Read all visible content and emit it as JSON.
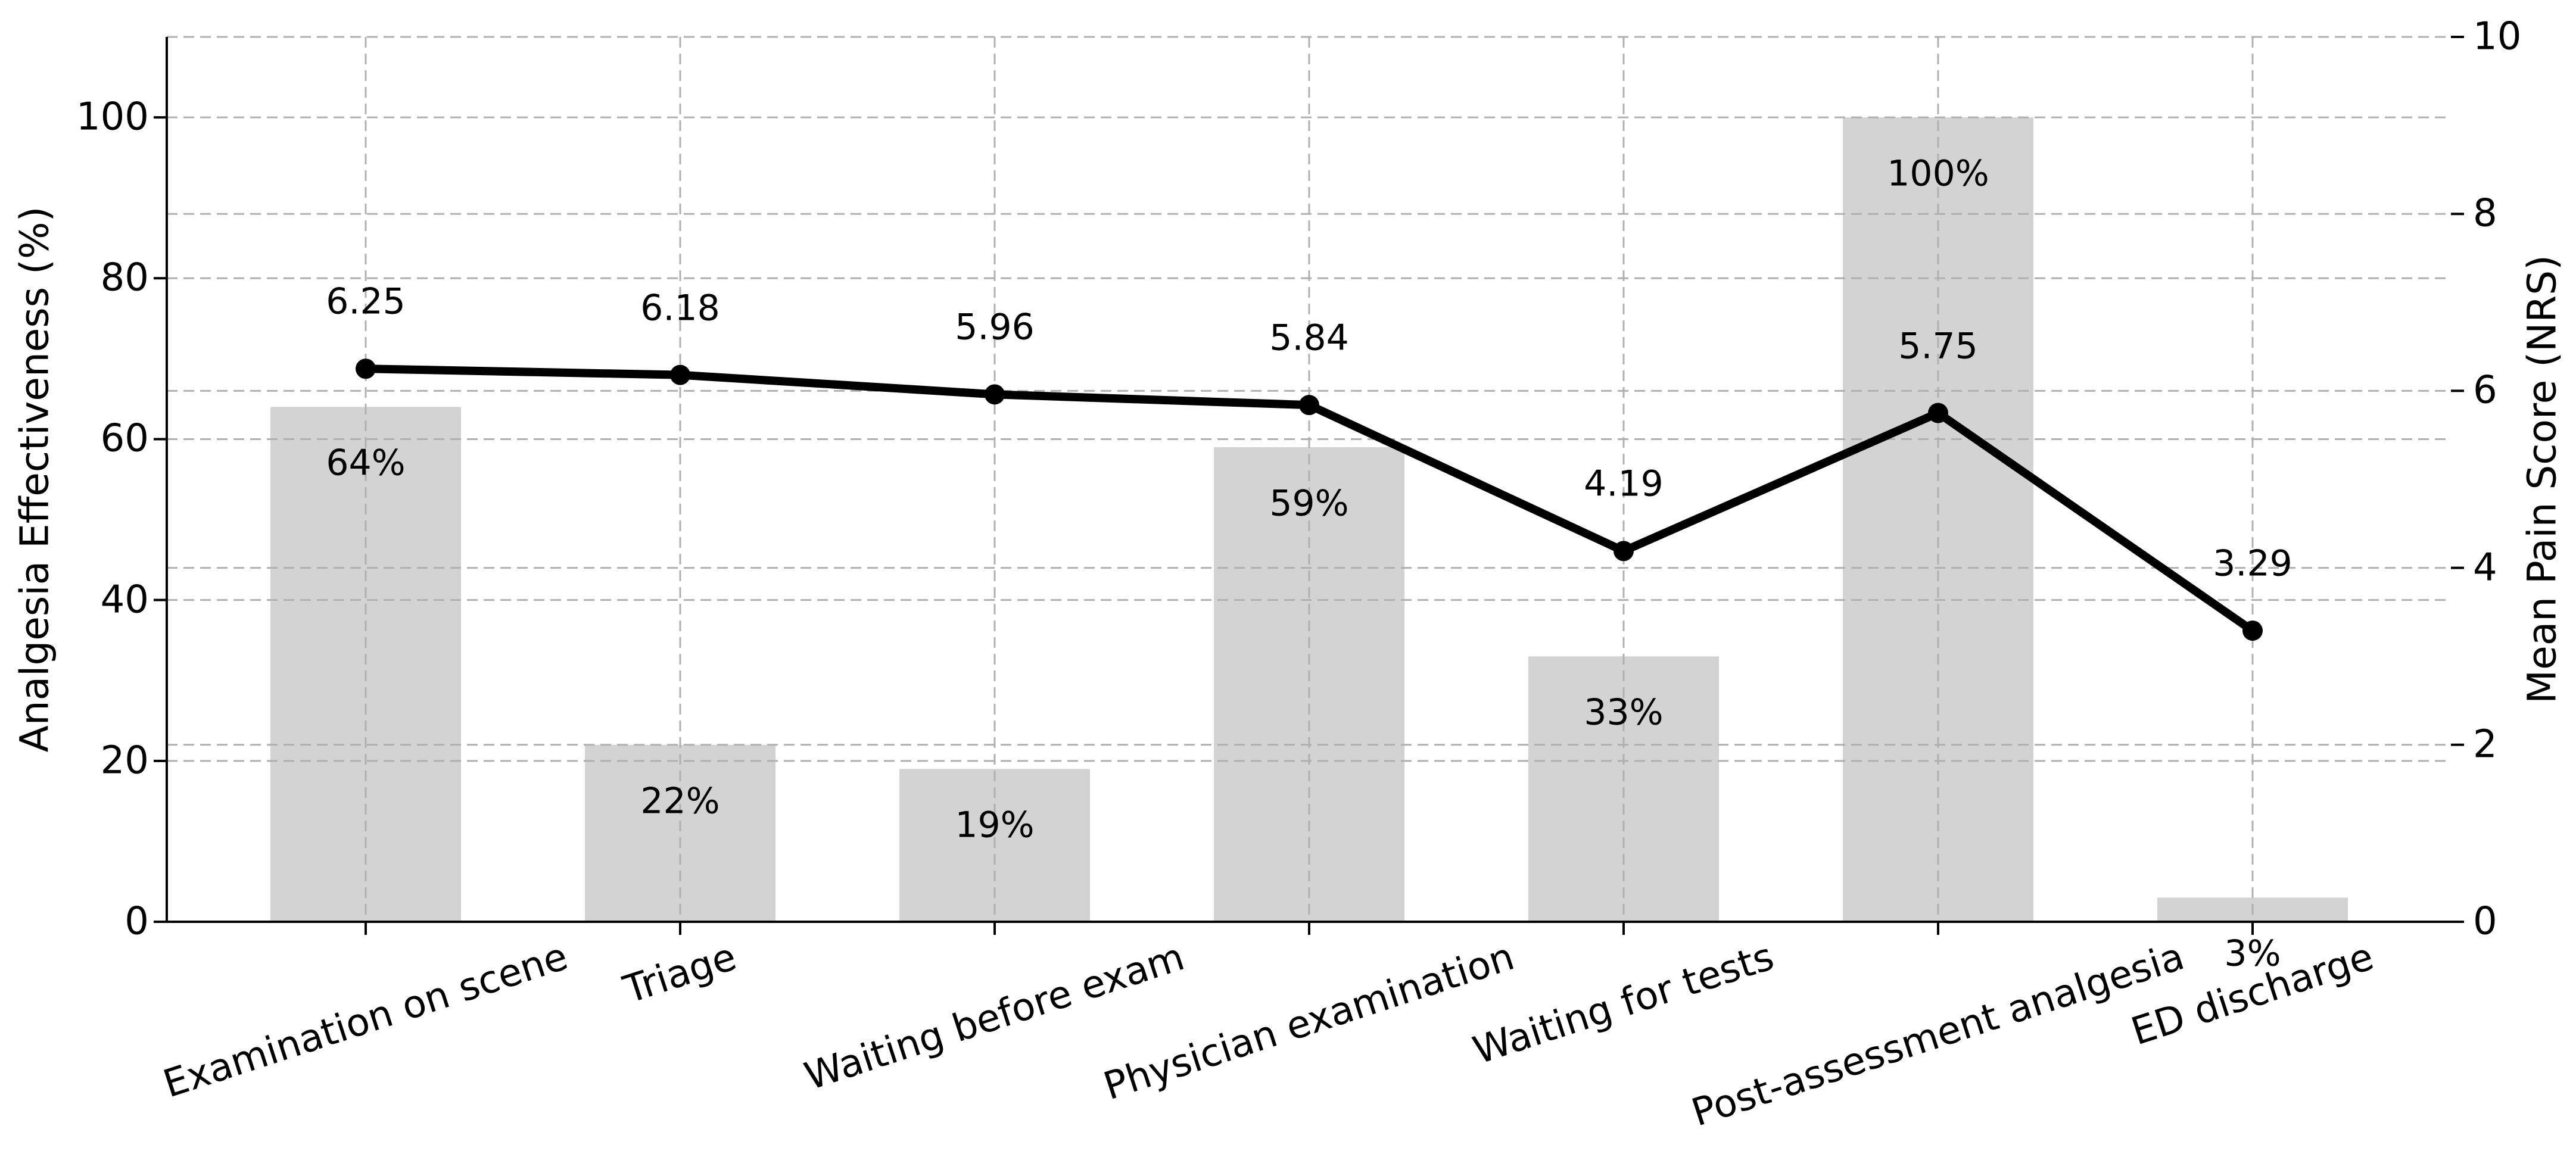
{
  "chart_data": {
    "type": "bar+line",
    "categories": [
      "Examination on scene",
      "Triage",
      "Waiting before exam",
      "Physician examination",
      "Waiting for tests",
      "Post-assessment analgesia",
      "ED discharge"
    ],
    "left_axis": {
      "label": "Analgesia Effectiveness (%)",
      "ticks": [
        0,
        20,
        40,
        60,
        80,
        100
      ],
      "range": [
        0,
        110
      ]
    },
    "right_axis": {
      "label": "Mean Pain Score (NRS)",
      "ticks": [
        0,
        2,
        4,
        6,
        8,
        10
      ],
      "range": [
        0,
        10
      ]
    },
    "grid": true,
    "grid_style": "dashed",
    "legend": "none",
    "series": [
      {
        "name": "Analgesia Effectiveness (%)",
        "type": "bar",
        "axis": "left",
        "values": [
          64,
          22,
          19,
          59,
          33,
          100,
          3
        ],
        "data_labels": [
          "64%",
          "22%",
          "19%",
          "59%",
          "33%",
          "100%",
          "3%"
        ]
      },
      {
        "name": "Mean Pain Score (NRS)",
        "type": "line",
        "axis": "right",
        "values": [
          6.25,
          6.18,
          5.96,
          5.84,
          4.19,
          5.75,
          3.29
        ],
        "data_labels": [
          "6.25",
          "6.18",
          "5.96",
          "5.84",
          "4.19",
          "5.75",
          "3.29"
        ]
      }
    ],
    "colors": {
      "bar": "#d3d3d3",
      "line": "#000000",
      "marker": "#000000",
      "grid": "#b0b0b0",
      "text": "#000000",
      "axis": "#000000",
      "background": "#ffffff"
    }
  }
}
